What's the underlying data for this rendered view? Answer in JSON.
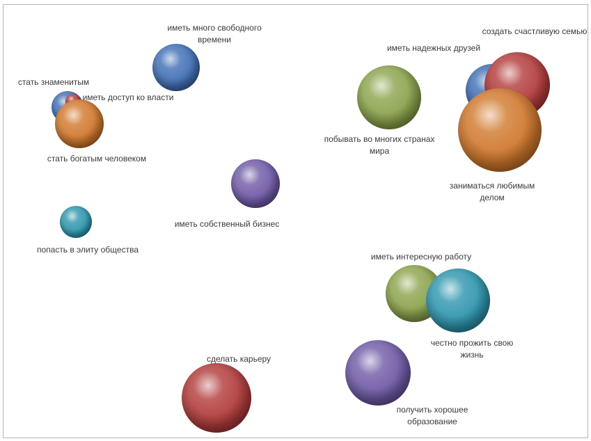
{
  "chart_data": {
    "type": "bubble",
    "title": "",
    "xlabel": "",
    "ylabel": "",
    "grid": false,
    "legend": "none",
    "series": [
      {
        "label": [
          "стать знаменитым"
        ],
        "x": 96,
        "y": 153,
        "size": 23,
        "color": "#3f6eb4"
      },
      {
        "label": [
          "иметь доступ ко власти"
        ],
        "x": 104,
        "y": 145,
        "size": 11,
        "color": "#b23a3a"
      },
      {
        "label": [
          "стать богатым человеком"
        ],
        "x": 113,
        "y": 177,
        "size": 35,
        "color": "#d0772b"
      },
      {
        "label": [
          "иметь много свободного",
          "времени"
        ],
        "x": 252,
        "y": 96,
        "size": 34,
        "color": "#3f6eb4"
      },
      {
        "label": [
          "иметь собственный бизнес"
        ],
        "x": 366,
        "y": 263,
        "size": 35,
        "color": "#6f59a6"
      },
      {
        "label": [
          "попасть в элиту общества"
        ],
        "x": 108,
        "y": 318,
        "size": 23,
        "color": "#2d95ad"
      },
      {
        "label": [
          "побывать во многих странах",
          "мира"
        ],
        "x": 558,
        "y": 139,
        "size": 46,
        "color": "#8aa34b"
      },
      {
        "label": [
          "иметь  надежных друзей"
        ],
        "x": 706,
        "y": 129,
        "size": 38,
        "color": "#3f6eb4"
      },
      {
        "label": [
          "создать счастливую семью"
        ],
        "x": 742,
        "y": 121,
        "size": 47,
        "color": "#b23a3a"
      },
      {
        "label": [
          "заниматься любимым",
          "делом"
        ],
        "x": 717,
        "y": 186,
        "size": 60,
        "color": "#d0772b"
      },
      {
        "label": [
          "иметь  интересную работу"
        ],
        "x": 594,
        "y": 421,
        "size": 41,
        "color": "#8aa34b"
      },
      {
        "label": [
          "честно  прожить свою",
          "жизнь"
        ],
        "x": 657,
        "y": 431,
        "size": 46,
        "color": "#2d95ad"
      },
      {
        "label": [
          "сделать карьеру"
        ],
        "x": 310,
        "y": 571,
        "size": 50,
        "color": "#b23a3a"
      },
      {
        "label": [
          "получить  хорошее",
          "образование"
        ],
        "x": 542,
        "y": 535,
        "size": 47,
        "color": "#6f59a6"
      }
    ]
  }
}
